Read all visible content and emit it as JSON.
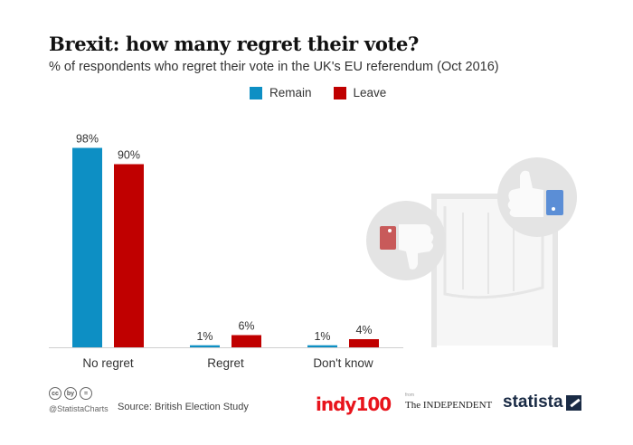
{
  "chart_data": {
    "type": "bar",
    "title": "Brexit: how many regret their vote?",
    "subtitle": "% of respondents who regret their vote in the UK's EU referendum (Oct 2016)",
    "categories": [
      "No regret",
      "Regret",
      "Don't know"
    ],
    "series": [
      {
        "name": "Remain",
        "color": "#0d8fc4",
        "values": [
          98,
          1,
          1
        ],
        "labels": [
          "98%",
          "1%",
          "1%"
        ]
      },
      {
        "name": "Leave",
        "color": "#c00000",
        "values": [
          90,
          6,
          4
        ],
        "labels": [
          "90%",
          "6%",
          "4%"
        ]
      }
    ],
    "ylim": [
      0,
      100
    ],
    "xlabel": "",
    "ylabel": "",
    "grid": false,
    "legend_position": "top"
  },
  "footer": {
    "license_icons": [
      "cc",
      "by",
      "="
    ],
    "handle": "@StatistaCharts",
    "source": "Source: British Election Study",
    "logo_indy": "indy100",
    "logo_independent_from": "from",
    "logo_independent": "The INDEPENDENT",
    "logo_statista": "statista"
  },
  "illustration": {
    "thumbs_down_icon": "thumbs-down-icon",
    "thumbs_up_icon": "thumbs-up-icon",
    "booth_icon": "voting-booth-icon"
  }
}
